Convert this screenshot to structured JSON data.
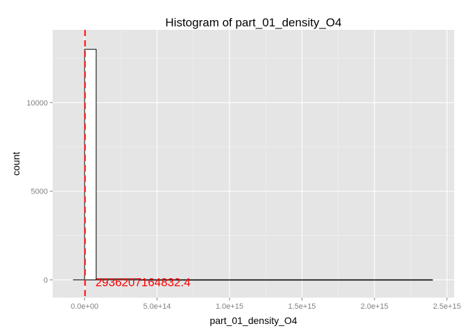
{
  "chart_data": {
    "type": "bar",
    "title": "Histogram of  part_01_density_O4",
    "xlabel": "part_01_density_O4",
    "ylabel": "count",
    "xlim": [
      -220000000000000.0,
      2550000000000000.0
    ],
    "ylim": [
      -1000,
      14100
    ],
    "x_ticks": [
      0,
      500000000000000.0,
      1000000000000000.0,
      1500000000000000.0,
      2000000000000000.0,
      2500000000000000.0
    ],
    "x_tick_labels": [
      "0.0e+00",
      "5.0e+14",
      "1.0e+15",
      "1.5e+15",
      "2.0e+15",
      "2.5e+15"
    ],
    "y_ticks": [
      0,
      5000,
      10000
    ],
    "y_tick_labels": [
      "0",
      "5000",
      "10000"
    ],
    "bins": [
      {
        "x0": 0,
        "x1": 80000000000000.0,
        "count": 13000
      },
      {
        "x0": 80000000000000.0,
        "x1": 380000000000000.0,
        "count": 60
      },
      {
        "x0": 380000000000000.0,
        "x1": 2400000000000000.0,
        "count": 5
      }
    ],
    "baseline": {
      "x0": -80000000000000.0,
      "x1": 2400000000000000.0
    },
    "vline": {
      "x": 2936207164832.4,
      "label": "2936207164832.4",
      "color": "#ff0000"
    },
    "grid": true,
    "colors": {
      "panel": "#e5e5e5",
      "grid": "#ffffff",
      "bar_fill": "#ffffff",
      "bar_stroke": "#000000"
    }
  }
}
